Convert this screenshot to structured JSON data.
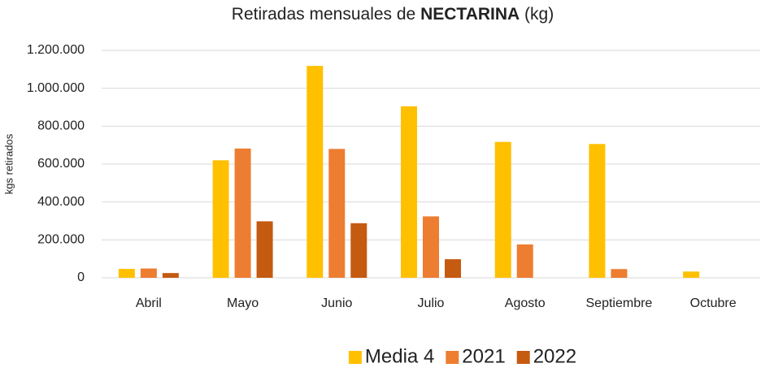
{
  "chart_data": {
    "type": "bar",
    "title": [
      "Retiradas mensuales de",
      "NECTARINA",
      "(kg)"
    ],
    "ylabel": "kgs retirados",
    "categories": [
      "Abril",
      "Mayo",
      "Junio",
      "Julio",
      "Agosto",
      "Septiembre",
      "Octubre"
    ],
    "series": [
      {
        "name": "Media 4",
        "color": "#FFC000",
        "values": [
          47000,
          620000,
          1118000,
          905000,
          717000,
          706000,
          33000
        ]
      },
      {
        "name": "2021",
        "color": "#ED7D31",
        "values": [
          49000,
          682000,
          680000,
          324000,
          176000,
          46000,
          null
        ]
      },
      {
        "name": "2022",
        "color": "#C55A11",
        "values": [
          25000,
          298000,
          288000,
          98000,
          null,
          null,
          null
        ]
      }
    ],
    "ylim": [
      0,
      1200000
    ],
    "yticks": [
      0,
      {
        "value": 200000,
        "label": "200.000"
      },
      {
        "value": 400000,
        "label": "400.000"
      },
      {
        "value": 600000,
        "label": "600.000"
      },
      {
        "value": 800000,
        "label": "800.000"
      },
      {
        "value": 1000000,
        "label": "1.000.000"
      },
      {
        "value": 1200000,
        "label": "1.200.000"
      }
    ],
    "grid": true,
    "legend": "bottom"
  }
}
